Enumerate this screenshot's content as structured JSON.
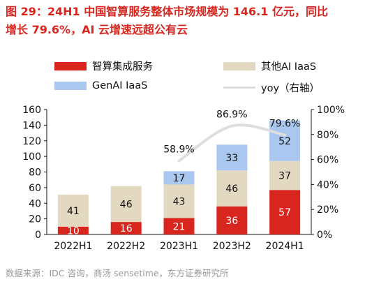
{
  "figure": {
    "title": "图 29：24H1 中国智算服务整体市场规模为 146.1 亿元，同比\n增长 79.6%，AI 云增速远超公有云",
    "source": "数据来源：IDC 咨询，商汤 sensetime，东方证券研究所"
  },
  "chart_data": {
    "type": "bar",
    "stacked": true,
    "categories": [
      "2022H1",
      "2022H2",
      "2023H1",
      "2023H2",
      "2024H1"
    ],
    "series": [
      {
        "name": "智算集成服务",
        "values": [
          10,
          16,
          21,
          36,
          57
        ],
        "color": "#d8261f",
        "label_color": "#ffffff"
      },
      {
        "name": "其他AI IaaS",
        "values": [
          41,
          46,
          43,
          46,
          37
        ],
        "color": "#e3d9c1",
        "label_color": "#111111"
      },
      {
        "name": "GenAI IaaS",
        "values": [
          null,
          null,
          17,
          33,
          52
        ],
        "color": "#a9c7ef",
        "label_color": "#111111"
      }
    ],
    "line": {
      "name": "yoy（右轴）",
      "values": [
        null,
        null,
        58.9,
        86.9,
        79.6
      ],
      "labels": [
        "",
        "",
        "58.9%",
        "86.9%",
        "79.6%"
      ],
      "color": "#dedede"
    },
    "y_left": {
      "min": 0,
      "max": 160,
      "ticks": [
        0,
        20,
        40,
        60,
        80,
        100,
        120,
        140,
        160
      ]
    },
    "y_right": {
      "min": 0,
      "max": 100,
      "ticks": [
        "0%",
        "20%",
        "40%",
        "60%",
        "80%",
        "100%"
      ]
    },
    "grid": false,
    "legend_position": "top"
  }
}
